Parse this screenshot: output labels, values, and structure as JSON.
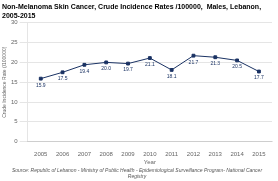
{
  "chart_data": {
    "type": "line",
    "title": "Non-Melanoma Skin Cancer, Crude Incidence Rates /100000,  Males, Lebanon,\n2005-2015",
    "xlabel": "Year",
    "ylabel": "Crude Incidence Rate (/100000)",
    "source": "Source: Republic of Lebanon - Ministry of Public Health - Epidemiological Surveillance Program- National Cancer Registry",
    "x": [
      2005,
      2006,
      2007,
      2008,
      2009,
      2010,
      2011,
      2012,
      2013,
      2014,
      2015
    ],
    "values": [
      15.9,
      17.5,
      19.4,
      20.0,
      19.7,
      21.1,
      18.1,
      21.7,
      21.3,
      20.5,
      17.7
    ],
    "value_labels": [
      "15.9",
      "17.5",
      "19.4",
      "20.0",
      "19.7",
      "21.1",
      "18.1",
      "21.7",
      "21.3",
      "20.5",
      "17.7"
    ],
    "data_labels": true,
    "color": "#1a3263",
    "marker": "square",
    "xlim": [
      2004.4,
      2015.6
    ],
    "xticks": [
      2005,
      2006,
      2007,
      2008,
      2009,
      2010,
      2011,
      2012,
      2013,
      2014,
      2015
    ],
    "ylim": [
      0,
      30
    ],
    "yticks": [
      0,
      5,
      10,
      15,
      20,
      25,
      30
    ],
    "grid": true
  }
}
